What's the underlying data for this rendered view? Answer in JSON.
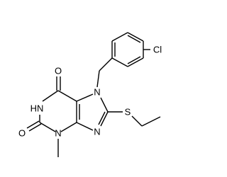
{
  "atoms": [
    "Cl",
    "N",
    "O",
    "HN",
    "N",
    "S",
    "O",
    "N"
  ]
}
